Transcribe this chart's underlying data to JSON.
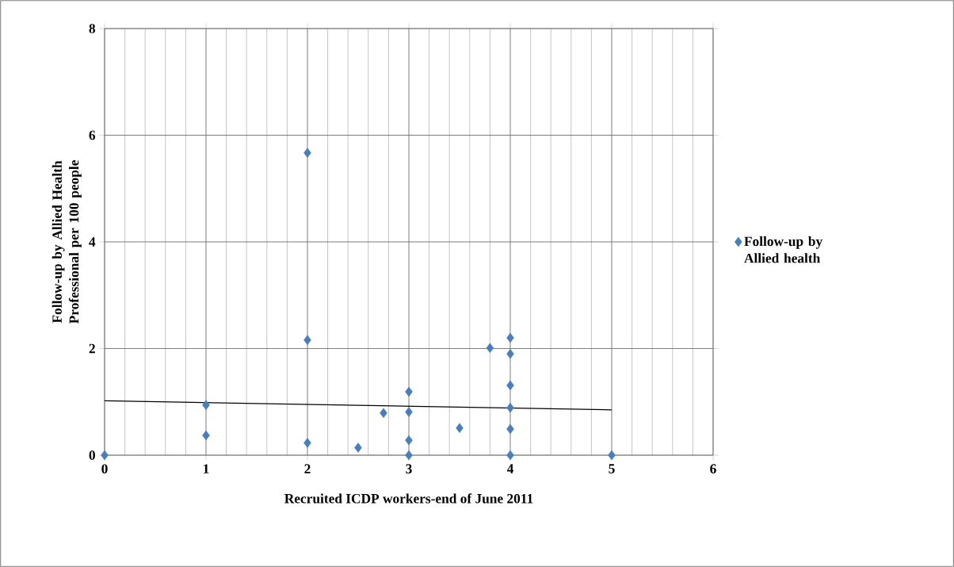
{
  "chart_data": {
    "type": "scatter",
    "xlabel": "Recruited ICDP workers-end of June 2011",
    "ylabel": "Follow-up by Allied Health Professional per 100 people",
    "xlim": [
      0,
      6
    ],
    "ylim": [
      0,
      8
    ],
    "xticks": [
      0,
      1,
      2,
      3,
      4,
      5,
      6
    ],
    "yticks": [
      0,
      2,
      4,
      6,
      8
    ],
    "grid": true,
    "legend": "right",
    "marker": "diamond",
    "series": [
      {
        "name": "Follow-up by Allied health",
        "color": "#4a7ebb",
        "x": [
          0,
          1,
          1,
          2,
          2,
          2,
          2.5,
          2.75,
          3,
          3,
          3,
          3,
          3.5,
          3.8,
          4,
          4,
          4,
          4,
          4,
          4,
          5
        ],
        "values": [
          0,
          0.94,
          0.37,
          5.67,
          2.16,
          0.23,
          0.14,
          0.79,
          1.19,
          0.81,
          0.28,
          0,
          0.51,
          2.01,
          2.2,
          1.9,
          1.31,
          0.89,
          0.49,
          0,
          0
        ]
      },
      {
        "type": "line",
        "color": "#000000",
        "marker": "none",
        "x": [
          0,
          5
        ],
        "values": [
          1.02,
          0.85
        ]
      }
    ]
  }
}
